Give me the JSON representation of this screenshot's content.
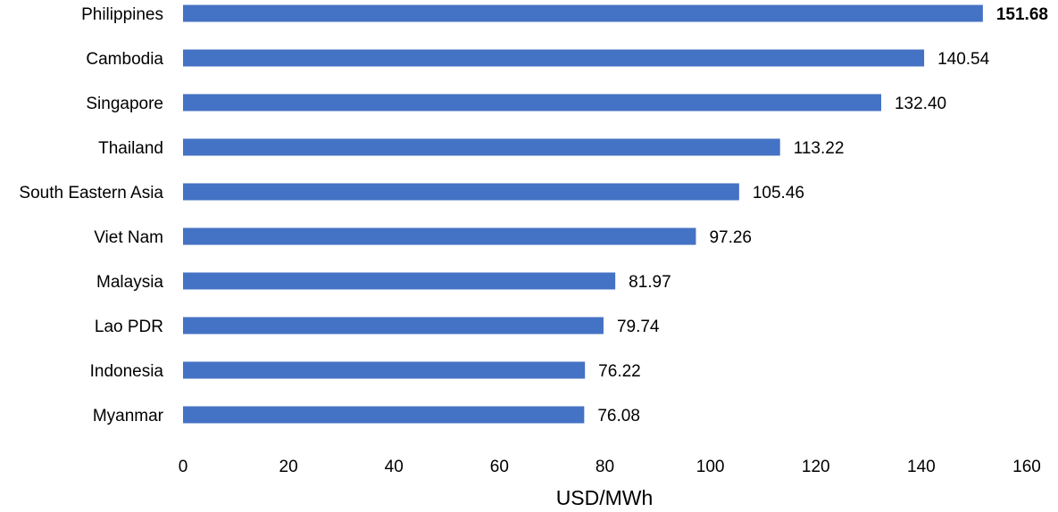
{
  "chart_data": {
    "type": "bar",
    "orientation": "horizontal",
    "categories": [
      "Philippines",
      "Cambodia",
      "Singapore",
      "Thailand",
      "South Eastern Asia",
      "Viet Nam",
      "Malaysia",
      "Lao PDR",
      "Indonesia",
      "Myanmar"
    ],
    "values": [
      151.68,
      140.54,
      132.4,
      113.22,
      105.46,
      97.26,
      81.97,
      79.74,
      76.22,
      76.08
    ],
    "value_labels": [
      "151.68",
      "140.54",
      "132.40",
      "113.22",
      "105.46",
      "97.26",
      "81.97",
      "79.74",
      "76.22",
      "76.08"
    ],
    "bold_value_index": 0,
    "xlabel": "USD/MWh",
    "ylabel": "",
    "xlim": [
      0,
      160
    ],
    "xticks": [
      "0",
      "20",
      "40",
      "60",
      "80",
      "100",
      "120",
      "140",
      "160"
    ],
    "grid": false,
    "legend": "none",
    "bar_color": "#4472C4"
  }
}
